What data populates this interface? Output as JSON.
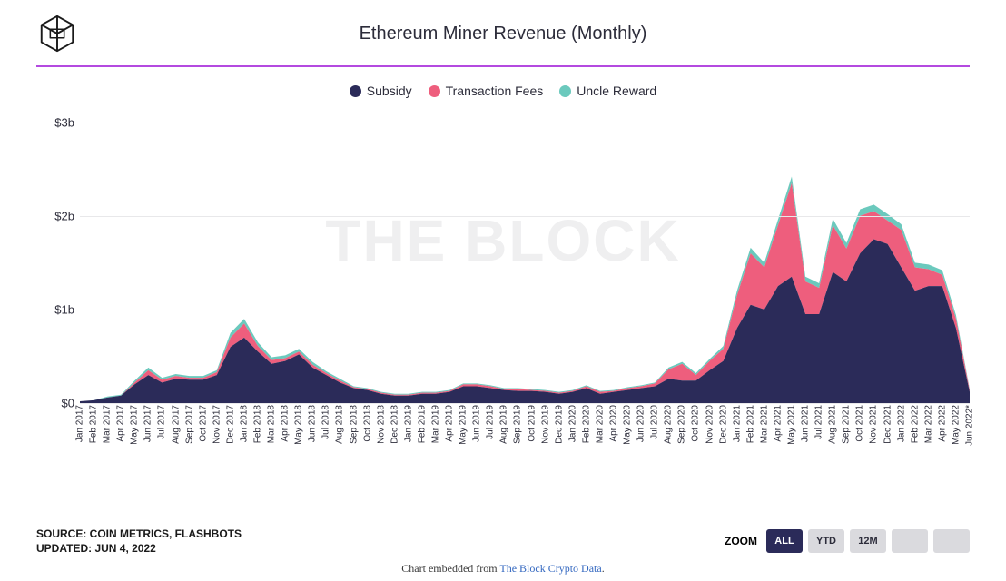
{
  "title": "Ethereum Miner Revenue (Monthly)",
  "divider_color": "#b44ae0",
  "watermark": "THE BLOCK",
  "watermark_color": "#efeff0",
  "chart": {
    "type": "stacked-area",
    "background_color": "#ffffff",
    "grid_color": "#e8e8ea",
    "ylabel_prefix": "$",
    "ylabel_suffix": "b",
    "ylim": [
      0,
      3.2
    ],
    "yticks": [
      0,
      1,
      2,
      3
    ],
    "ytick_labels": [
      "$0",
      "$1b",
      "$2b",
      "$3b"
    ],
    "label_fontsize": 13,
    "xlabel_fontsize": 10,
    "title_fontsize": 20,
    "categories": [
      "Jan 2017",
      "Feb 2017",
      "Mar 2017",
      "Apr 2017",
      "May 2017",
      "Jun 2017",
      "Jul 2017",
      "Aug 2017",
      "Sep 2017",
      "Oct 2017",
      "Nov 2017",
      "Dec 2017",
      "Jan 2018",
      "Feb 2018",
      "Mar 2018",
      "Apr 2018",
      "May 2018",
      "Jun 2018",
      "Jul 2018",
      "Aug 2018",
      "Sep 2018",
      "Oct 2018",
      "Nov 2018",
      "Dec 2018",
      "Jan 2019",
      "Feb 2019",
      "Mar 2019",
      "Apr 2019",
      "May 2019",
      "Jun 2019",
      "Jul 2019",
      "Aug 2019",
      "Sep 2019",
      "Oct 2019",
      "Nov 2019",
      "Dec 2019",
      "Jan 2020",
      "Feb 2020",
      "Mar 2020",
      "Apr 2020",
      "May 2020",
      "Jun 2020",
      "Jul 2020",
      "Aug 2020",
      "Sep 2020",
      "Oct 2020",
      "Nov 2020",
      "Dec 2020",
      "Jan 2021",
      "Feb 2021",
      "Mar 2021",
      "Apr 2021",
      "May 2021",
      "Jun 2021",
      "Jul 2021",
      "Aug 2021",
      "Sep 2021",
      "Oct 2021",
      "Nov 2021",
      "Dec 2021",
      "Jan 2022",
      "Feb 2022",
      "Mar 2022",
      "Apr 2022",
      "May 2022",
      "Jun 2022*"
    ],
    "series": [
      {
        "name": "Subsidy",
        "color": "#2b2b59",
        "values": [
          0.02,
          0.03,
          0.06,
          0.08,
          0.2,
          0.3,
          0.22,
          0.26,
          0.25,
          0.25,
          0.3,
          0.6,
          0.7,
          0.55,
          0.42,
          0.45,
          0.52,
          0.38,
          0.3,
          0.22,
          0.16,
          0.14,
          0.1,
          0.08,
          0.08,
          0.1,
          0.1,
          0.12,
          0.18,
          0.18,
          0.16,
          0.14,
          0.13,
          0.13,
          0.12,
          0.1,
          0.12,
          0.16,
          0.1,
          0.12,
          0.14,
          0.16,
          0.18,
          0.26,
          0.24,
          0.24,
          0.35,
          0.45,
          0.8,
          1.05,
          1.0,
          1.25,
          1.35,
          0.95,
          0.95,
          1.4,
          1.3,
          1.6,
          1.75,
          1.7,
          1.45,
          1.2,
          1.25,
          1.25,
          0.8,
          0.12
        ]
      },
      {
        "name": "Transaction Fees",
        "color": "#ee5e7d",
        "values": [
          0.0,
          0.0,
          0.0,
          0.0,
          0.02,
          0.05,
          0.03,
          0.03,
          0.02,
          0.02,
          0.03,
          0.1,
          0.15,
          0.06,
          0.04,
          0.03,
          0.03,
          0.03,
          0.02,
          0.02,
          0.01,
          0.01,
          0.01,
          0.01,
          0.01,
          0.01,
          0.01,
          0.01,
          0.02,
          0.02,
          0.02,
          0.01,
          0.02,
          0.01,
          0.01,
          0.01,
          0.01,
          0.02,
          0.02,
          0.01,
          0.02,
          0.02,
          0.03,
          0.1,
          0.18,
          0.06,
          0.1,
          0.13,
          0.35,
          0.55,
          0.45,
          0.65,
          1.0,
          0.35,
          0.28,
          0.5,
          0.35,
          0.4,
          0.3,
          0.25,
          0.4,
          0.25,
          0.18,
          0.12,
          0.1,
          0.02
        ]
      },
      {
        "name": "Uncle Reward",
        "color": "#6bc9bd",
        "values": [
          0.0,
          0.0,
          0.01,
          0.01,
          0.02,
          0.03,
          0.02,
          0.02,
          0.02,
          0.02,
          0.02,
          0.05,
          0.05,
          0.04,
          0.03,
          0.03,
          0.03,
          0.03,
          0.02,
          0.02,
          0.01,
          0.01,
          0.01,
          0.01,
          0.01,
          0.01,
          0.01,
          0.01,
          0.01,
          0.01,
          0.01,
          0.01,
          0.01,
          0.01,
          0.01,
          0.01,
          0.01,
          0.01,
          0.01,
          0.01,
          0.01,
          0.01,
          0.01,
          0.02,
          0.02,
          0.02,
          0.02,
          0.03,
          0.05,
          0.06,
          0.05,
          0.06,
          0.07,
          0.05,
          0.05,
          0.07,
          0.06,
          0.07,
          0.07,
          0.07,
          0.06,
          0.05,
          0.05,
          0.05,
          0.04,
          0.01
        ]
      }
    ]
  },
  "legend": {
    "items": [
      {
        "label": "Subsidy",
        "color": "#2b2b59"
      },
      {
        "label": "Transaction Fees",
        "color": "#ee5e7d"
      },
      {
        "label": "Uncle Reward",
        "color": "#6bc9bd"
      }
    ],
    "fontsize": 14
  },
  "source": {
    "line1": "SOURCE: COIN METRICS, FLASHBOTS",
    "line2": "UPDATED: JUN 4, 2022"
  },
  "zoom": {
    "label": "ZOOM",
    "buttons": [
      {
        "label": "ALL",
        "active": true
      },
      {
        "label": "YTD",
        "active": false
      },
      {
        "label": "12M",
        "active": false
      },
      {
        "label": "",
        "active": false
      },
      {
        "label": "",
        "active": false
      }
    ]
  },
  "caption": {
    "prefix": "Chart embedded from ",
    "link_text": "The Block Crypto Data",
    "suffix": "."
  }
}
